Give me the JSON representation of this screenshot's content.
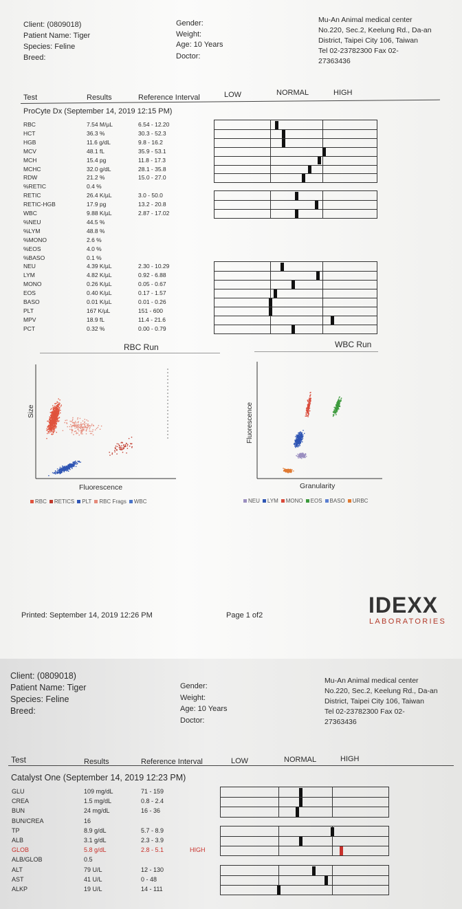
{
  "page1": {
    "client": "Client: (0809018)",
    "patient": "Patient Name: Tiger",
    "species": "Species: Feline",
    "breed": "Breed:",
    "gender": "Gender:",
    "weight": "Weight:",
    "age": "Age: 10 Years",
    "doctor": "Doctor:",
    "clinic": [
      "Mu-An Animal medical center",
      "No.220, Sec.2, Keelung Rd., Da-an",
      "District, Taipei City 106, Taiwan",
      "Tel 02-23782300  Fax 02-",
      "27363436"
    ],
    "columns": {
      "test": "Test",
      "results": "Results",
      "reference": "Reference Interval",
      "low": "LOW",
      "normal": "NORMAL",
      "high": "HIGH"
    },
    "section_title": "ProCyte Dx (September 14, 2019 12:15 PM)",
    "rows": [
      {
        "test": "RBC",
        "result": "7.54 M/µL",
        "ref": "6.54 - 12.20",
        "level": 0.38
      },
      {
        "test": "HCT",
        "result": "36.3 %",
        "ref": "30.3 - 52.3",
        "level": 0.42
      },
      {
        "test": "HGB",
        "result": "11.6 g/dL",
        "ref": "9.8 - 16.2",
        "level": 0.42
      },
      {
        "test": "MCV",
        "result": "48.1 fL",
        "ref": "35.9 - 53.1",
        "level": 0.67
      },
      {
        "test": "MCH",
        "result": "15.4 pg",
        "ref": "11.8 - 17.3",
        "level": 0.64
      },
      {
        "test": "MCHC",
        "result": "32.0 g/dL",
        "ref": "28.1 - 35.8",
        "level": 0.58
      },
      {
        "test": "RDW",
        "result": "21.2 %",
        "ref": "15.0 - 27.0",
        "level": 0.54
      },
      {
        "test": "%RETIC",
        "result": "0.4 %",
        "ref": ""
      },
      {
        "test": "RETIC",
        "result": "26.4 K/µL",
        "ref": "3.0 - 50.0",
        "level": 0.5
      },
      {
        "test": "RETIC-HGB",
        "result": "17.9 pg",
        "ref": "13.2 - 20.8",
        "level": 0.62
      },
      {
        "test": "WBC",
        "result": "9.88 K/µL",
        "ref": "2.87 - 17.02",
        "level": 0.5
      },
      {
        "test": "%NEU",
        "result": "44.5 %",
        "ref": ""
      },
      {
        "test": "%LYM",
        "result": "48.8 %",
        "ref": ""
      },
      {
        "test": "%MONO",
        "result": "2.6 %",
        "ref": ""
      },
      {
        "test": "%EOS",
        "result": "4.0 %",
        "ref": ""
      },
      {
        "test": "%BASO",
        "result": "0.1 %",
        "ref": ""
      },
      {
        "test": "NEU",
        "result": "4.39 K/µL",
        "ref": "2.30 - 10.29",
        "level": 0.41
      },
      {
        "test": "LYM",
        "result": "4.82 K/µL",
        "ref": "0.92 - 6.88",
        "level": 0.63
      },
      {
        "test": "MONO",
        "result": "0.26 K/µL",
        "ref": "0.05 - 0.67",
        "level": 0.48
      },
      {
        "test": "EOS",
        "result": "0.40 K/µL",
        "ref": "0.17 - 1.57",
        "level": 0.37
      },
      {
        "test": "BASO",
        "result": "0.01 K/µL",
        "ref": "0.01 - 0.26",
        "level": 0.34
      },
      {
        "test": "PLT",
        "result": "167 K/µL",
        "ref": "151 - 600",
        "level": 0.34
      },
      {
        "test": "MPV",
        "result": "18.9 fL",
        "ref": "11.4 - 21.6",
        "level": 0.72
      },
      {
        "test": "PCT",
        "result": "0.32 %",
        "ref": "0.00 - 0.79",
        "level": 0.48
      }
    ],
    "rbc_run": {
      "title": "RBC Run",
      "ylabel": "Size",
      "xlabel": "Fluorescence",
      "legend": [
        {
          "name": "RBC",
          "color": "#e0533d"
        },
        {
          "name": "RETICS",
          "color": "#c0392b"
        },
        {
          "name": "PLT",
          "color": "#2f55b4"
        },
        {
          "name": "RBC Frags",
          "color": "#e58a7a"
        },
        {
          "name": "WBC",
          "color": "#4a74c9"
        }
      ]
    },
    "wbc_run": {
      "title": "WBC Run",
      "ylabel": "Fluorescence",
      "xlabel": "Granularity",
      "legend": [
        {
          "name": "NEU",
          "color": "#9b8fc0"
        },
        {
          "name": "LYM",
          "color": "#2f55b4"
        },
        {
          "name": "MONO",
          "color": "#d94a3a"
        },
        {
          "name": "EOS",
          "color": "#3c9a3c"
        },
        {
          "name": "BASO",
          "color": "#5b7fd1"
        },
        {
          "name": "URBC",
          "color": "#e07a32"
        }
      ]
    },
    "printed": "Printed: September 14, 2019 12:26 PM",
    "page_no": "Page 1 of2",
    "brand": "IDEXX",
    "brand_sub": "LABORATORIES"
  },
  "page2": {
    "client": "Client: (0809018)",
    "patient": "Patient Name: Tiger",
    "species": "Species: Feline",
    "breed": "Breed:",
    "gender": "Gender:",
    "weight": "Weight:",
    "age": "Age: 10 Years",
    "doctor": "Doctor:",
    "clinic": [
      "Mu-An Animal medical center",
      "No.220, Sec.2, Keelung Rd., Da-an",
      "District, Taipei City 106, Taiwan",
      "Tel 02-23782300  Fax 02-",
      "27363436"
    ],
    "columns": {
      "test": "Test",
      "results": "Results",
      "reference": "Reference Interval",
      "low": "LOW",
      "normal": "NORMAL",
      "high": "HIGH"
    },
    "section_title": "Catalyst One (September 14, 2019 12:23 PM)",
    "rows": [
      {
        "test": "GLU",
        "result": "109 mg/dL",
        "ref": "71 - 159",
        "level": 0.47
      },
      {
        "test": "CREA",
        "result": "1.5 mg/dL",
        "ref": "0.8 - 2.4",
        "level": 0.47
      },
      {
        "test": "BUN",
        "result": "24 mg/dL",
        "ref": "16 - 36",
        "level": 0.45
      },
      {
        "test": "BUN/CREA",
        "result": "16",
        "ref": ""
      },
      {
        "test": "TP",
        "result": "8.9 g/dL",
        "ref": "5.7 - 8.9",
        "level": 0.66
      },
      {
        "test": "ALB",
        "result": "3.1 g/dL",
        "ref": "2.3 - 3.9",
        "level": 0.47
      },
      {
        "test": "GLOB",
        "result": "5.8 g/dL",
        "ref": "2.8 - 5.1",
        "flag": "HIGH",
        "level": 0.71,
        "high": true
      },
      {
        "test": "ALB/GLOB",
        "result": "0.5",
        "ref": ""
      },
      {
        "test": "ALT",
        "result": "79 U/L",
        "ref": "12 - 130",
        "level": 0.55
      },
      {
        "test": "AST",
        "result": "41 U/L",
        "ref": "0 - 48",
        "level": 0.62
      },
      {
        "test": "ALKP",
        "result": "19 U/L",
        "ref": "14 - 111",
        "level": 0.34
      }
    ]
  }
}
